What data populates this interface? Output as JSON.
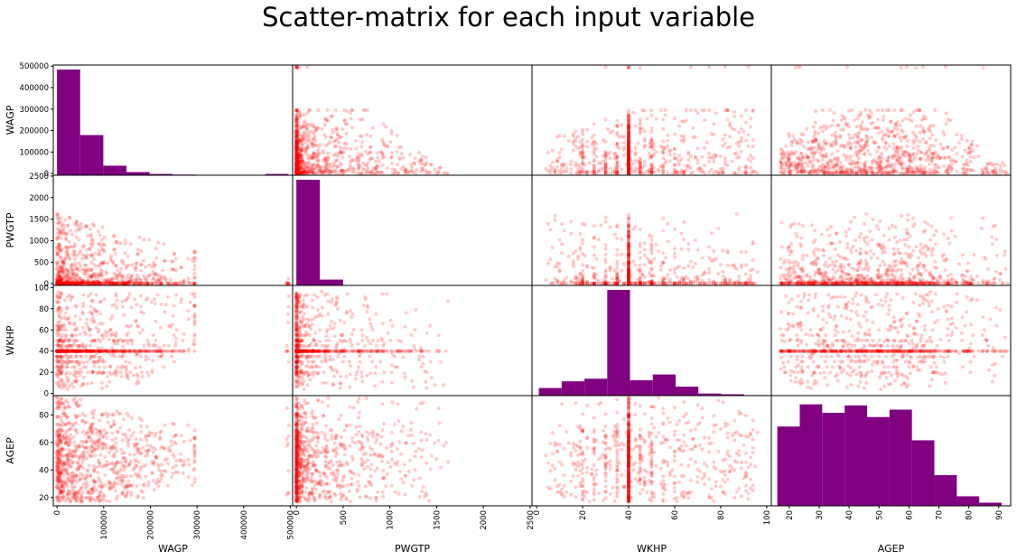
{
  "chart_data": {
    "type": "scatter",
    "title": "Scatter-matrix for each input variable",
    "variables": [
      "WAGP",
      "PWGTP",
      "WKHP",
      "AGEP"
    ],
    "ranges": {
      "WAGP": [
        -8000,
        505000
      ],
      "PWGTP": [
        -40,
        2520
      ],
      "WKHP": [
        -2,
        102
      ],
      "AGEP": [
        14,
        94
      ]
    },
    "ticks": {
      "WAGP": [
        0,
        100000,
        200000,
        300000,
        400000,
        500000
      ],
      "PWGTP": [
        0,
        500,
        1000,
        1500,
        2000,
        2500
      ],
      "WKHP": [
        0,
        20,
        40,
        60,
        80,
        100
      ],
      "AGEP": [
        20,
        40,
        60,
        80
      ]
    },
    "ticks_bottom": {
      "AGEP": [
        20,
        30,
        40,
        50,
        60,
        70,
        80,
        90
      ]
    },
    "diagonal": "hist",
    "histograms": {
      "WAGP": {
        "edges": [
          0,
          49600,
          99200,
          148800,
          198400,
          248000,
          297600,
          347200,
          396800,
          446400,
          496000
        ],
        "heights": [
          1.0,
          0.38,
          0.09,
          0.03,
          0.012,
          0.006,
          0.002,
          0.0,
          0.0,
          0.012
        ]
      },
      "PWGTP": {
        "edges": [
          0,
          250,
          500,
          750,
          1000,
          1250,
          1500,
          1750,
          2000,
          2250,
          2500
        ],
        "heights": [
          1.0,
          0.055,
          0.004,
          0.001,
          0.0005,
          0.0,
          0.0,
          0.0,
          0.0,
          0.0
        ]
      },
      "WKHP": {
        "edges": [
          1,
          10.9,
          20.8,
          30.7,
          40.6,
          50.5,
          60.4,
          70.3,
          80.2,
          90.1,
          100
        ],
        "heights": [
          0.072,
          0.135,
          0.16,
          1.0,
          0.145,
          0.2,
          0.085,
          0.02,
          0.013,
          0.005
        ]
      },
      "AGEP": {
        "edges": [
          16,
          23.5,
          31,
          38.5,
          46,
          53.5,
          61,
          68.5,
          76,
          83.5,
          91
        ],
        "heights": [
          0.75,
          0.96,
          0.88,
          0.95,
          0.84,
          0.91,
          0.62,
          0.29,
          0.09,
          0.03
        ]
      }
    },
    "colors": {
      "points": "#ff0000",
      "hist": "#800080"
    },
    "point_alpha": 0.2,
    "marker_size": 4
  }
}
